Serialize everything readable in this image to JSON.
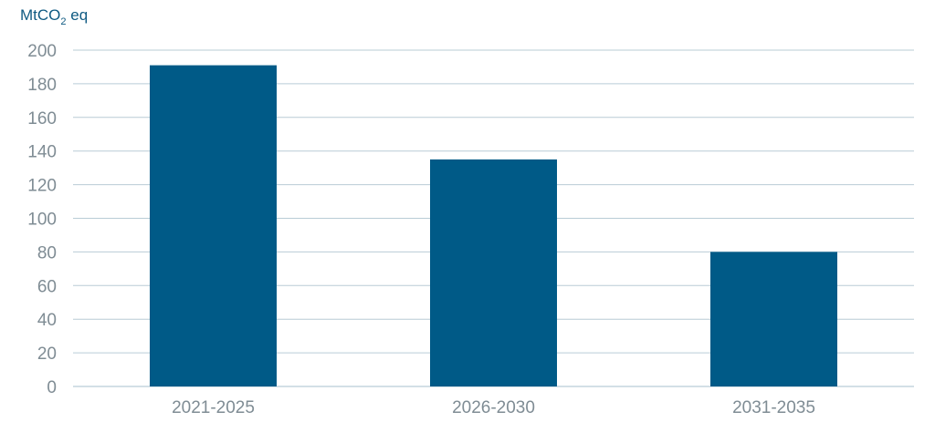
{
  "chart_data": {
    "type": "bar",
    "ylabel": {
      "main": "MtCO",
      "sub": "2",
      "suffix": " eq"
    },
    "categories": [
      "2021-2025",
      "2026-2030",
      "2031-2035"
    ],
    "values": [
      191,
      135,
      80
    ],
    "ylim": [
      0,
      200
    ],
    "yticks": [
      0,
      20,
      40,
      60,
      80,
      100,
      120,
      140,
      160,
      180,
      200
    ],
    "grid": true,
    "bar_color": "#005a87"
  }
}
